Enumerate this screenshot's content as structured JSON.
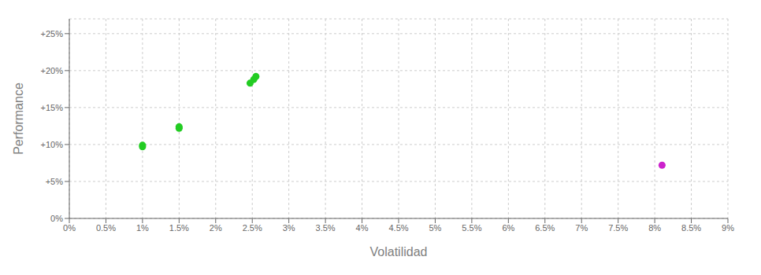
{
  "chart_data": {
    "type": "scatter",
    "xlabel": "Volatilidad",
    "ylabel": "Performance",
    "xlim": [
      0,
      0.09
    ],
    "ylim": [
      0,
      0.27
    ],
    "xticks": [
      {
        "value": 0,
        "label": "0%"
      },
      {
        "value": 0.005,
        "label": "0.5%"
      },
      {
        "value": 0.01,
        "label": "1%"
      },
      {
        "value": 0.015,
        "label": "1.5%"
      },
      {
        "value": 0.02,
        "label": "2%"
      },
      {
        "value": 0.025,
        "label": "2.5%"
      },
      {
        "value": 0.03,
        "label": "3%"
      },
      {
        "value": 0.035,
        "label": "3.5%"
      },
      {
        "value": 0.04,
        "label": "4%"
      },
      {
        "value": 0.045,
        "label": "4.5%"
      },
      {
        "value": 0.05,
        "label": "5%"
      },
      {
        "value": 0.055,
        "label": "5.5%"
      },
      {
        "value": 0.06,
        "label": "6%"
      },
      {
        "value": 0.065,
        "label": "6.5%"
      },
      {
        "value": 0.07,
        "label": "7%"
      },
      {
        "value": 0.075,
        "label": "7.5%"
      },
      {
        "value": 0.08,
        "label": "8%"
      },
      {
        "value": 0.085,
        "label": "8.5%"
      },
      {
        "value": 0.09,
        "label": "9%"
      }
    ],
    "yticks": [
      {
        "value": 0,
        "label": "0%"
      },
      {
        "value": 0.05,
        "label": "+5%"
      },
      {
        "value": 0.1,
        "label": "+10%"
      },
      {
        "value": 0.15,
        "label": "+15%"
      },
      {
        "value": 0.2,
        "label": "+20%"
      },
      {
        "value": 0.25,
        "label": "+25%"
      }
    ],
    "grid": true,
    "series": [
      {
        "color": "#22cc22",
        "x": [
          0.01,
          0.01,
          0.015,
          0.015,
          0.0247,
          0.0252,
          0.0255
        ],
        "values": [
          0.097,
          0.099,
          0.122,
          0.124,
          0.183,
          0.188,
          0.192
        ]
      },
      {
        "color": "#cc22cc",
        "x": [
          0.081
        ],
        "values": [
          0.072
        ]
      }
    ]
  }
}
